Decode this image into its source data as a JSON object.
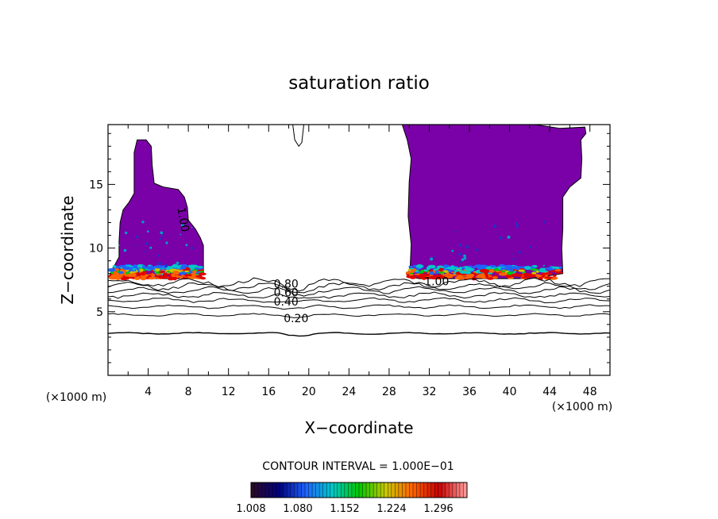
{
  "chart_data": {
    "type": "contour",
    "title": "saturation ratio",
    "xlabel": "X−coordinate",
    "ylabel": "Z−coordinate",
    "x_unit_left": "(×1000 m)",
    "x_unit_right": "(×1000 m)",
    "xlim": [
      0,
      50
    ],
    "ylim": [
      0,
      19.7
    ],
    "x_ticks": [
      4,
      8,
      12,
      16,
      20,
      24,
      28,
      32,
      36,
      40,
      44,
      48
    ],
    "x_tick_labels": [
      "4",
      "8",
      "12",
      "16",
      "20",
      "24",
      "28",
      "32",
      "36",
      "40",
      "44",
      "48"
    ],
    "y_ticks": [
      5,
      10,
      15
    ],
    "y_tick_labels": [
      "5",
      "10",
      "15"
    ],
    "contour_interval_text": "CONTOUR INTERVAL = 1.000E−01",
    "contour_labels": [
      {
        "text": "0.80",
        "x": 16.5,
        "y": 7.2
      },
      {
        "text": "0.60",
        "x": 16.5,
        "y": 6.5
      },
      {
        "text": "0.40",
        "x": 16.5,
        "y": 5.8
      },
      {
        "text": "0.20",
        "x": 17.5,
        "y": 4.5
      },
      {
        "text": "1.00",
        "x": 31.5,
        "y": 7.4
      },
      {
        "text": "1.00",
        "x": 7.3,
        "y": 13.2
      }
    ],
    "contour_levels": [
      0.2,
      0.3,
      0.4,
      0.5,
      0.6,
      0.7,
      0.8,
      0.9
    ],
    "contour_base_heights": [
      3.3,
      4.75,
      5.4,
      5.9,
      6.3,
      6.7,
      7.0,
      7.3
    ],
    "colorbar": {
      "min": 1.008,
      "max": 1.34,
      "tick_labels": [
        "1.008",
        "1.080",
        "1.152",
        "1.224",
        "1.296"
      ],
      "colors": [
        "#2a0a2a",
        "#000080",
        "#1e64ff",
        "#00c8c8",
        "#00c800",
        "#c8c800",
        "#ff6400",
        "#c80000",
        "#ff9696"
      ]
    },
    "supersaturated_fill_color": "#7a00a8",
    "cloud_regions": [
      {
        "name": "left",
        "outline": [
          [
            0.3,
            8.2
          ],
          [
            0.7,
            8.7
          ],
          [
            1.1,
            9.3
          ],
          [
            1.1,
            10.5
          ],
          [
            1.2,
            12.0
          ],
          [
            1.5,
            13.0
          ],
          [
            2.1,
            13.6
          ],
          [
            2.6,
            14.3
          ],
          [
            2.6,
            15.8
          ],
          [
            2.6,
            17.5
          ],
          [
            2.9,
            18.5
          ],
          [
            3.8,
            18.5
          ],
          [
            4.3,
            18.0
          ],
          [
            4.4,
            16.5
          ],
          [
            4.6,
            15.1
          ],
          [
            5.5,
            14.8
          ],
          [
            7.0,
            14.6
          ],
          [
            7.6,
            14.0
          ],
          [
            7.9,
            13.2
          ],
          [
            8.0,
            12.2
          ],
          [
            8.7,
            11.5
          ],
          [
            9.2,
            10.8
          ],
          [
            9.5,
            10.2
          ],
          [
            9.5,
            9.0
          ],
          [
            9.5,
            8.0
          ],
          [
            7.0,
            7.6
          ],
          [
            3.0,
            7.6
          ],
          [
            0.3,
            7.7
          ]
        ],
        "band_x": [
          0.3,
          9.5
        ],
        "band_y": [
          7.6,
          8.6
        ]
      },
      {
        "name": "right",
        "outline": [
          [
            29.8,
            7.8
          ],
          [
            30.1,
            8.6
          ],
          [
            30.2,
            10.3
          ],
          [
            29.9,
            12.5
          ],
          [
            30.0,
            15.2
          ],
          [
            30.2,
            17.0
          ],
          [
            29.8,
            18.5
          ],
          [
            29.3,
            19.7
          ],
          [
            32.0,
            19.7
          ],
          [
            42.5,
            19.7
          ],
          [
            45.0,
            19.4
          ],
          [
            47.5,
            19.5
          ],
          [
            47.6,
            19.0
          ],
          [
            47.1,
            18.5
          ],
          [
            47.2,
            17.0
          ],
          [
            47.1,
            15.5
          ],
          [
            46.0,
            14.8
          ],
          [
            45.3,
            14.0
          ],
          [
            45.3,
            11.5
          ],
          [
            45.2,
            10.0
          ],
          [
            45.3,
            8.0
          ],
          [
            42.0,
            7.6
          ],
          [
            36.0,
            7.6
          ],
          [
            31.0,
            7.6
          ]
        ],
        "band_x": [
          30.0,
          45.3
        ],
        "band_y": [
          7.6,
          8.6
        ]
      }
    ],
    "cloud_notch": {
      "outline": [
        [
          18.4,
          19.7
        ],
        [
          18.6,
          18.5
        ],
        [
          19.0,
          18.0
        ],
        [
          19.3,
          18.3
        ],
        [
          19.5,
          19.7
        ]
      ]
    }
  }
}
